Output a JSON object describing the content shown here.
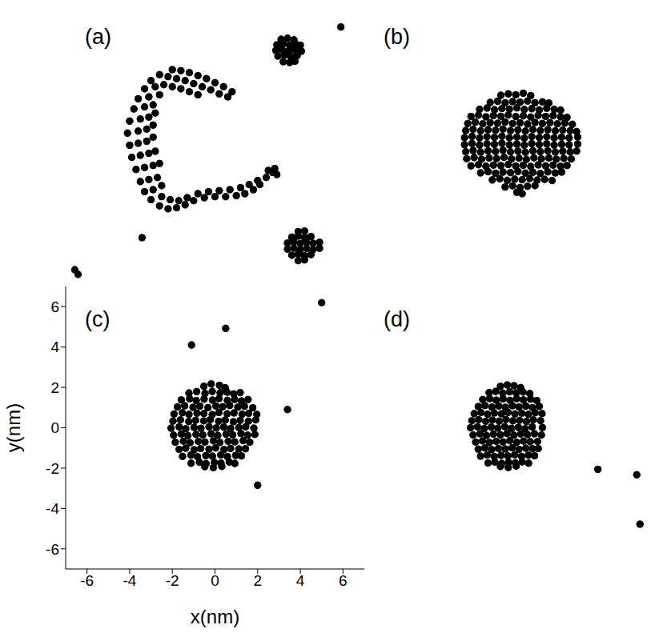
{
  "chart_data": [
    {
      "type": "scatter",
      "title": "(a)",
      "color": "#000000",
      "marker": "circle",
      "tick_labels": false,
      "xlim": [
        -7,
        7
      ],
      "ylim": [
        -7,
        7
      ],
      "xticks": [
        -6,
        -4,
        -2,
        0,
        2,
        4,
        6
      ],
      "yticks": [
        -6,
        -4,
        -2,
        0,
        2,
        4,
        6
      ],
      "x": [
        -2.0,
        -1.6,
        -1.2,
        -0.8,
        -0.4,
        0.0,
        0.4,
        0.8,
        -2.2,
        -1.8,
        -1.4,
        -1.0,
        -0.6,
        -0.2,
        0.2,
        0.6,
        -2.4,
        -2.0,
        -1.6,
        -1.2,
        -0.8,
        -2.6,
        -3.0,
        -3.3,
        -3.6,
        -3.8,
        -4.0,
        -4.1,
        -4.0,
        -3.9,
        -3.7,
        -3.5,
        -3.3,
        -2.8,
        -3.1,
        -3.3,
        -3.5,
        -3.6,
        -3.6,
        -3.5,
        -3.3,
        -3.1,
        -2.9,
        -2.6,
        -2.9,
        -3.1,
        -3.2,
        -3.2,
        -3.1,
        -2.9,
        -2.7,
        -2.5,
        -2.8,
        -2.9,
        -2.9,
        -2.8,
        -2.6,
        -3.0,
        -2.6,
        -2.2,
        -1.8,
        -1.4,
        -1.0,
        -0.5,
        0.0,
        0.5,
        1.0,
        1.4,
        1.8,
        2.1,
        2.4,
        2.7,
        -2.5,
        -2.1,
        -1.7,
        -1.3,
        -0.8,
        -0.3,
        0.2,
        0.7,
        1.2,
        1.6,
        2.0,
        2.5,
        2.8,
        2.9,
        3.1,
        3.4,
        3.7,
        2.9,
        3.2,
        3.5,
        3.8,
        4.0,
        2.85,
        3.15,
        3.45,
        3.75,
        4.05,
        2.95,
        3.25,
        3.55,
        3.85,
        3.2,
        3.5,
        3.75,
        3.9,
        4.2,
        3.6,
        3.9,
        4.2,
        4.5,
        3.4,
        3.7,
        4.0,
        4.3,
        4.6,
        4.9,
        3.4,
        3.7,
        4.0,
        4.3,
        4.6,
        4.9,
        3.6,
        3.9,
        4.2,
        4.5,
        3.9,
        4.2,
        5.9,
        -3.42,
        -6.57,
        -6.42
      ],
      "values": [
        3.75,
        3.7,
        3.6,
        3.45,
        3.3,
        3.1,
        2.9,
        2.65,
        3.4,
        3.3,
        3.2,
        3.05,
        2.9,
        2.75,
        2.55,
        2.4,
        3.0,
        2.9,
        2.8,
        2.65,
        2.5,
        3.5,
        3.2,
        2.8,
        2.3,
        1.8,
        1.2,
        0.6,
        0.0,
        -0.6,
        -1.2,
        -1.8,
        -2.3,
        2.9,
        2.4,
        1.9,
        1.3,
        0.7,
        0.1,
        -0.5,
        -1.1,
        -1.7,
        -2.2,
        2.5,
        2.0,
        1.4,
        0.8,
        0.2,
        -0.4,
        -1.0,
        -1.6,
        -2.0,
        1.6,
        1.0,
        0.4,
        -0.3,
        -0.9,
        -2.7,
        -3.0,
        -3.15,
        -3.1,
        -2.95,
        -2.75,
        -2.6,
        -2.55,
        -2.55,
        -2.5,
        -2.4,
        -2.2,
        -1.95,
        -1.6,
        -1.35,
        -2.55,
        -2.7,
        -2.75,
        -2.6,
        -2.4,
        -2.3,
        -2.25,
        -2.2,
        -2.1,
        -1.95,
        -1.75,
        -1.25,
        -1.15,
        -1.45,
        5.25,
        5.3,
        5.22,
        4.98,
        5.02,
        4.95,
        5.0,
        4.96,
        4.7,
        4.74,
        4.68,
        4.72,
        4.66,
        4.42,
        4.46,
        4.4,
        4.44,
        4.14,
        4.1,
        4.16,
        -4.28,
        -4.25,
        -4.55,
        -4.5,
        -4.57,
        -4.52,
        -4.85,
        -4.8,
        -4.87,
        -4.82,
        -4.86,
        -4.81,
        -5.15,
        -5.1,
        -5.17,
        -5.12,
        -5.16,
        -5.11,
        -5.45,
        -5.4,
        -5.47,
        -5.42,
        -5.72,
        -5.68,
        5.86,
        -4.58,
        -6.17,
        -6.4
      ]
    },
    {
      "type": "scatter",
      "title": "(b)",
      "color": "#000000",
      "marker": "circle",
      "tick_labels": false,
      "xlim": [
        -7,
        7
      ],
      "ylim": [
        -7,
        7
      ],
      "xticks": [
        -6,
        -4,
        -2,
        0,
        2,
        4,
        6
      ],
      "yticks": [
        -6,
        -4,
        -2,
        0,
        2,
        4,
        6
      ],
      "x": [
        -0.6,
        -0.25,
        0.1,
        0.45,
        0.8,
        -1.1,
        -0.75,
        -0.4,
        -0.05,
        0.3,
        0.65,
        1.0,
        1.35,
        1.65,
        -1.6,
        -1.25,
        -0.9,
        -0.55,
        -0.2,
        0.15,
        0.5,
        0.85,
        1.2,
        1.55,
        1.9,
        2.2,
        -2.0,
        -1.65,
        -1.3,
        -0.95,
        -0.6,
        -0.25,
        0.1,
        0.45,
        0.8,
        1.15,
        1.5,
        1.85,
        2.2,
        2.5,
        -2.15,
        -1.8,
        -1.45,
        -1.1,
        -0.75,
        -0.4,
        -0.05,
        0.3,
        0.65,
        1.0,
        1.35,
        1.7,
        2.05,
        2.4,
        2.75,
        -2.25,
        -1.9,
        -1.55,
        -1.2,
        -0.85,
        -0.5,
        -0.15,
        0.2,
        0.55,
        0.9,
        1.25,
        1.6,
        1.95,
        2.3,
        2.65,
        2.95,
        -2.3,
        -1.95,
        -1.6,
        -1.25,
        -0.9,
        -0.55,
        -0.2,
        0.15,
        0.5,
        0.85,
        1.2,
        1.55,
        1.9,
        2.25,
        2.6,
        3.0,
        -2.3,
        -1.95,
        -1.6,
        -1.25,
        -0.9,
        -0.55,
        -0.2,
        0.15,
        0.5,
        0.85,
        1.2,
        1.55,
        1.9,
        2.25,
        2.6,
        3.0,
        -2.25,
        -1.9,
        -1.55,
        -1.2,
        -0.85,
        -0.5,
        -0.15,
        0.2,
        0.55,
        0.9,
        1.25,
        1.6,
        1.95,
        2.3,
        2.65,
        2.95,
        -2.2,
        -1.85,
        -1.5,
        -1.15,
        -0.8,
        -0.45,
        -0.1,
        0.25,
        0.6,
        0.95,
        1.3,
        1.65,
        2.0,
        2.35,
        2.7,
        -2.0,
        -1.65,
        -1.3,
        -0.95,
        -0.6,
        -0.25,
        0.1,
        0.45,
        0.8,
        1.15,
        1.5,
        1.85,
        2.2,
        2.5,
        -1.55,
        -1.2,
        -0.85,
        -0.5,
        -0.15,
        0.2,
        0.55,
        0.9,
        1.25,
        1.6,
        1.95,
        2.25,
        -1.0,
        -0.65,
        -0.3,
        0.05,
        0.4,
        0.75,
        1.1,
        1.45,
        1.8,
        -0.4,
        -0.05,
        0.3,
        0.65,
        1.0,
        0.15,
        0.4
      ],
      "values": [
        2.48,
        2.55,
        2.5,
        2.58,
        2.46,
        2.12,
        2.18,
        2.1,
        2.16,
        2.13,
        2.19,
        2.11,
        2.15,
        2.09,
        1.78,
        1.84,
        1.76,
        1.82,
        1.79,
        1.85,
        1.77,
        1.81,
        1.75,
        1.83,
        1.78,
        1.74,
        1.43,
        1.49,
        1.41,
        1.47,
        1.44,
        1.5,
        1.42,
        1.46,
        1.4,
        1.48,
        1.43,
        1.47,
        1.41,
        1.38,
        1.08,
        1.14,
        1.06,
        1.12,
        1.09,
        1.15,
        1.07,
        1.11,
        1.05,
        1.13,
        1.08,
        1.12,
        1.06,
        1.1,
        1.04,
        0.73,
        0.79,
        0.71,
        0.77,
        0.74,
        0.8,
        0.72,
        0.76,
        0.7,
        0.78,
        0.73,
        0.77,
        0.71,
        0.75,
        0.72,
        0.68,
        0.38,
        0.44,
        0.36,
        0.42,
        0.39,
        0.45,
        0.37,
        0.41,
        0.35,
        0.43,
        0.38,
        0.42,
        0.36,
        0.4,
        0.37,
        0.41,
        0.03,
        0.09,
        0.01,
        0.07,
        0.04,
        0.1,
        0.02,
        0.06,
        0.0,
        0.08,
        0.03,
        0.07,
        0.01,
        0.05,
        0.02,
        0.06,
        -0.32,
        -0.26,
        -0.34,
        -0.28,
        -0.31,
        -0.25,
        -0.33,
        -0.29,
        -0.35,
        -0.27,
        -0.32,
        -0.28,
        -0.34,
        -0.3,
        -0.33,
        -0.29,
        -0.67,
        -0.61,
        -0.69,
        -0.63,
        -0.66,
        -0.6,
        -0.68,
        -0.64,
        -0.7,
        -0.62,
        -0.67,
        -0.63,
        -0.69,
        -0.65,
        -0.68,
        -1.02,
        -0.96,
        -1.04,
        -0.98,
        -1.01,
        -0.95,
        -1.03,
        -0.99,
        -1.05,
        -0.97,
        -1.02,
        -0.98,
        -1.04,
        -1.0,
        -1.37,
        -1.31,
        -1.39,
        -1.33,
        -1.36,
        -1.3,
        -1.38,
        -1.34,
        -1.4,
        -1.32,
        -1.37,
        -1.33,
        -1.72,
        -1.66,
        -1.74,
        -1.68,
        -1.71,
        -1.65,
        -1.73,
        -1.69,
        -1.75,
        -2.07,
        -2.01,
        -2.09,
        -2.03,
        -2.0,
        -2.33,
        -2.4
      ]
    },
    {
      "type": "scatter",
      "title": "(c)",
      "color": "#000000",
      "marker": "circle",
      "x_label": "x(nm)",
      "y_label": "y(nm)",
      "xlim": [
        -7,
        7
      ],
      "ylim": [
        -7,
        7
      ],
      "xticks": [
        -6,
        -4,
        -2,
        0,
        2,
        4,
        6
      ],
      "yticks": [
        -6,
        -4,
        -2,
        0,
        2,
        4,
        6
      ],
      "x": [
        -0.52,
        -0.18,
        0.21,
        0.48,
        -1.22,
        -0.86,
        -0.47,
        -0.13,
        0.24,
        0.57,
        0.88,
        1.18,
        -1.58,
        -1.19,
        -0.88,
        -0.51,
        -0.12,
        0.19,
        0.58,
        0.92,
        1.24,
        1.55,
        -1.76,
        -1.42,
        -1.03,
        -0.71,
        -0.33,
        0.04,
        0.36,
        0.69,
        1.07,
        1.38,
        1.77,
        -1.92,
        -1.53,
        -1.22,
        -0.84,
        -0.52,
        -0.13,
        0.18,
        0.57,
        0.89,
        1.27,
        1.58,
        1.96,
        -1.97,
        -1.62,
        -1.23,
        -0.91,
        -0.53,
        -0.22,
        0.17,
        0.48,
        0.86,
        1.18,
        1.57,
        1.91,
        -2.06,
        -1.68,
        -1.37,
        -0.98,
        -0.66,
        -0.28,
        0.06,
        0.41,
        0.73,
        1.12,
        1.44,
        1.82,
        -1.94,
        -1.58,
        -1.27,
        -0.89,
        -0.57,
        -0.18,
        0.13,
        0.52,
        0.83,
        1.22,
        1.53,
        1.87,
        -1.86,
        -1.48,
        -1.17,
        -0.78,
        -0.47,
        -0.08,
        0.23,
        0.62,
        0.93,
        1.32,
        1.63,
        -1.68,
        -1.37,
        -0.98,
        -0.67,
        -0.28,
        0.03,
        0.42,
        0.73,
        1.12,
        1.43,
        -1.52,
        -1.13,
        -0.82,
        -0.43,
        -0.12,
        0.27,
        0.58,
        0.97,
        1.24,
        -1.12,
        -0.73,
        -0.42,
        -0.03,
        0.28,
        0.67,
        0.93,
        -0.48,
        -0.08,
        0.32,
        -1.1,
        0.5,
        5.0,
        3.4,
        2.0
      ],
      "values": [
        2.05,
        2.17,
        2.1,
        1.98,
        1.72,
        1.79,
        1.7,
        1.8,
        1.73,
        1.76,
        1.68,
        1.74,
        1.38,
        1.44,
        1.35,
        1.42,
        1.37,
        1.45,
        1.36,
        1.41,
        1.33,
        1.4,
        1.03,
        1.09,
        1.01,
        1.07,
        1.0,
        1.08,
        1.04,
        1.1,
        1.02,
        1.06,
        0.99,
        0.68,
        0.74,
        0.66,
        0.72,
        0.7,
        0.65,
        0.75,
        0.69,
        0.73,
        0.67,
        0.71,
        0.66,
        0.33,
        0.39,
        0.31,
        0.37,
        0.34,
        0.4,
        0.32,
        0.38,
        0.3,
        0.36,
        0.33,
        0.39,
        -0.02,
        0.04,
        -0.05,
        0.02,
        -0.03,
        0.05,
        -0.01,
        0.03,
        -0.04,
        0.01,
        0.05,
        -0.02,
        -0.37,
        -0.31,
        -0.39,
        -0.33,
        -0.36,
        -0.3,
        -0.38,
        -0.32,
        -0.35,
        -0.29,
        -0.37,
        -0.33,
        -0.72,
        -0.66,
        -0.74,
        -0.68,
        -0.71,
        -0.65,
        -0.73,
        -0.67,
        -0.7,
        -0.64,
        -0.72,
        -1.07,
        -1.01,
        -1.09,
        -1.03,
        -1.06,
        -1.0,
        -1.08,
        -1.02,
        -1.05,
        -1.04,
        -1.42,
        -1.36,
        -1.44,
        -1.38,
        -1.41,
        -1.35,
        -1.43,
        -1.37,
        -1.4,
        -1.76,
        -1.71,
        -1.78,
        -1.72,
        -1.75,
        -1.7,
        -1.77,
        -1.93,
        -1.98,
        -1.92,
        4.1,
        4.93,
        6.2,
        0.9,
        -2.85
      ]
    },
    {
      "type": "scatter",
      "title": "(d)",
      "color": "#000000",
      "marker": "circle",
      "tick_labels": false,
      "xlim": [
        -7,
        7
      ],
      "ylim": [
        -7,
        7
      ],
      "xticks": [
        -6,
        -4,
        -2,
        0,
        2,
        4,
        6
      ],
      "yticks": [
        -6,
        -4,
        -2,
        0,
        2,
        4,
        6
      ],
      "x": [
        -0.62,
        -0.3,
        0.02,
        0.33,
        -1.15,
        -0.84,
        -0.51,
        -0.19,
        0.12,
        0.44,
        0.76,
        -1.45,
        -1.13,
        -0.82,
        -0.5,
        -0.17,
        0.14,
        0.46,
        0.79,
        1.08,
        -1.66,
        -1.35,
        -1.02,
        -0.7,
        -0.39,
        -0.06,
        0.25,
        0.57,
        0.88,
        1.2,
        -1.85,
        -1.53,
        -1.22,
        -0.9,
        -0.57,
        -0.26,
        0.06,
        0.38,
        0.69,
        1.01,
        1.33,
        -1.96,
        -1.64,
        -1.31,
        -1.0,
        -0.68,
        -0.36,
        -0.04,
        0.28,
        0.6,
        0.92,
        1.26,
        -2.02,
        -1.7,
        -1.38,
        -1.05,
        -0.74,
        -0.42,
        -0.1,
        0.22,
        0.54,
        0.87,
        1.35,
        -1.9,
        -1.58,
        -1.27,
        -0.95,
        -0.62,
        -0.31,
        0.01,
        0.33,
        0.65,
        0.97,
        1.3,
        -1.78,
        -1.46,
        -1.14,
        -0.82,
        -0.5,
        -0.18,
        0.14,
        0.46,
        0.78,
        1.12,
        -1.66,
        -1.35,
        -1.03,
        -0.71,
        -0.39,
        -0.07,
        0.25,
        0.57,
        0.89,
        1.15,
        -1.55,
        -1.23,
        -0.91,
        -0.59,
        -0.27,
        0.05,
        0.37,
        0.69,
        0.98,
        -1.2,
        -0.88,
        -0.56,
        -0.24,
        0.08,
        0.4,
        0.7,
        -0.62,
        -0.25,
        0.12,
        3.95,
        5.77,
        5.92
      ],
      "values": [
        2.05,
        2.12,
        2.08,
        1.99,
        1.74,
        1.8,
        1.71,
        1.78,
        1.72,
        1.77,
        1.69,
        1.4,
        1.45,
        1.37,
        1.43,
        1.36,
        1.44,
        1.38,
        1.42,
        1.35,
        1.05,
        1.1,
        1.02,
        1.08,
        1.01,
        1.09,
        1.03,
        1.07,
        1.0,
        1.06,
        0.7,
        0.75,
        0.67,
        0.73,
        0.69,
        0.76,
        0.68,
        0.72,
        0.66,
        0.74,
        0.7,
        0.35,
        0.4,
        0.32,
        0.38,
        0.33,
        0.41,
        0.34,
        0.37,
        0.31,
        0.39,
        0.35,
        0.0,
        0.05,
        -0.04,
        0.03,
        -0.02,
        0.06,
        -0.03,
        0.02,
        -0.05,
        0.04,
        0.01,
        -0.36,
        -0.3,
        -0.38,
        -0.32,
        -0.35,
        -0.29,
        -0.37,
        -0.31,
        -0.34,
        -0.3,
        -0.36,
        -0.71,
        -0.65,
        -0.73,
        -0.67,
        -0.7,
        -0.64,
        -0.72,
        -0.66,
        -0.69,
        -0.68,
        -1.06,
        -1.0,
        -1.08,
        -1.02,
        -1.05,
        -0.99,
        -1.07,
        -1.01,
        -1.04,
        -1.03,
        -1.41,
        -1.35,
        -1.43,
        -1.37,
        -1.4,
        -1.34,
        -1.42,
        -1.36,
        -1.39,
        -1.75,
        -1.7,
        -1.77,
        -1.71,
        -1.74,
        -1.69,
        -1.76,
        -1.92,
        -1.97,
        -1.9,
        -2.06,
        -2.33,
        -4.78
      ]
    }
  ]
}
